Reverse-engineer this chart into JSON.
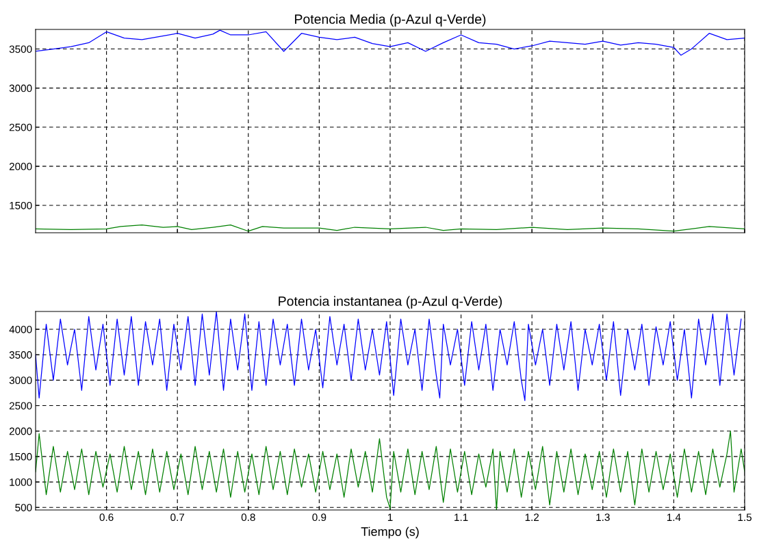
{
  "chart_data": [
    {
      "type": "line",
      "title": "Potencia Media (p-Azul q-Verde)",
      "xlim": [
        0.5,
        1.5
      ],
      "xticks": [
        0.6,
        0.7,
        0.8,
        0.9,
        1,
        1.1,
        1.2,
        1.3,
        1.4,
        1.5
      ],
      "ylim": [
        1150,
        3750
      ],
      "yticks": [
        1500,
        2000,
        2500,
        3000,
        3500
      ],
      "grid": true,
      "tick_labels": "y",
      "series": [
        {
          "color": "#0000ff",
          "x": [
            0.5,
            0.525,
            0.55,
            0.575,
            0.6,
            0.625,
            0.65,
            0.675,
            0.7,
            0.725,
            0.75,
            0.76,
            0.775,
            0.8,
            0.825,
            0.85,
            0.875,
            0.9,
            0.925,
            0.95,
            0.975,
            1.0,
            1.025,
            1.05,
            1.075,
            1.1,
            1.125,
            1.15,
            1.175,
            1.2,
            1.225,
            1.25,
            1.275,
            1.3,
            1.325,
            1.35,
            1.375,
            1.4,
            1.41,
            1.425,
            1.45,
            1.475,
            1.5
          ],
          "values": [
            3470,
            3500,
            3530,
            3580,
            3720,
            3640,
            3620,
            3660,
            3700,
            3640,
            3690,
            3740,
            3680,
            3680,
            3720,
            3470,
            3700,
            3650,
            3620,
            3650,
            3570,
            3530,
            3580,
            3470,
            3580,
            3680,
            3580,
            3560,
            3500,
            3540,
            3600,
            3580,
            3560,
            3600,
            3550,
            3580,
            3560,
            3520,
            3420,
            3500,
            3700,
            3620,
            3640
          ]
        },
        {
          "color": "#008000",
          "x": [
            0.5,
            0.55,
            0.6,
            0.62,
            0.65,
            0.68,
            0.7,
            0.72,
            0.75,
            0.775,
            0.8,
            0.82,
            0.85,
            0.9,
            0.925,
            0.95,
            1.0,
            1.05,
            1.075,
            1.1,
            1.15,
            1.2,
            1.25,
            1.3,
            1.35,
            1.4,
            1.45,
            1.5
          ],
          "values": [
            1200,
            1190,
            1200,
            1230,
            1250,
            1220,
            1230,
            1190,
            1220,
            1250,
            1170,
            1230,
            1210,
            1210,
            1180,
            1220,
            1200,
            1220,
            1180,
            1200,
            1190,
            1220,
            1190,
            1210,
            1200,
            1170,
            1230,
            1200
          ]
        }
      ]
    },
    {
      "type": "line",
      "title": "Potencia instantanea (p-Azul q-Verde)",
      "xlabel": "Tiempo (s)",
      "xlim": [
        0.5,
        1.5
      ],
      "xticks": [
        0.6,
        0.7,
        0.8,
        0.9,
        1,
        1.1,
        1.2,
        1.3,
        1.4,
        1.5
      ],
      "ylim": [
        450,
        4350
      ],
      "yticks": [
        500,
        1000,
        1500,
        2000,
        2500,
        3000,
        3500,
        4000
      ],
      "grid": true,
      "series": [
        {
          "color": "#0000ff",
          "x": [
            0.5,
            0.505,
            0.515,
            0.525,
            0.535,
            0.545,
            0.555,
            0.565,
            0.575,
            0.585,
            0.595,
            0.605,
            0.615,
            0.625,
            0.635,
            0.645,
            0.655,
            0.665,
            0.675,
            0.685,
            0.695,
            0.705,
            0.715,
            0.725,
            0.735,
            0.745,
            0.755,
            0.765,
            0.775,
            0.785,
            0.795,
            0.805,
            0.815,
            0.825,
            0.835,
            0.845,
            0.855,
            0.865,
            0.875,
            0.885,
            0.895,
            0.905,
            0.915,
            0.925,
            0.935,
            0.945,
            0.955,
            0.965,
            0.975,
            0.985,
            0.995,
            1.005,
            1.015,
            1.025,
            1.035,
            1.045,
            1.055,
            1.065,
            1.07,
            1.075,
            1.085,
            1.095,
            1.105,
            1.115,
            1.125,
            1.135,
            1.145,
            1.155,
            1.165,
            1.175,
            1.185,
            1.19,
            1.195,
            1.205,
            1.215,
            1.225,
            1.235,
            1.245,
            1.255,
            1.265,
            1.275,
            1.285,
            1.295,
            1.305,
            1.315,
            1.325,
            1.335,
            1.345,
            1.355,
            1.365,
            1.375,
            1.385,
            1.395,
            1.405,
            1.415,
            1.425,
            1.435,
            1.445,
            1.455,
            1.465,
            1.475,
            1.485,
            1.495
          ],
          "values": [
            3500,
            2650,
            4100,
            3000,
            4200,
            3300,
            4000,
            2800,
            4250,
            3200,
            4100,
            2900,
            4200,
            3100,
            4250,
            2900,
            4150,
            3300,
            4200,
            2800,
            4100,
            3200,
            4250,
            2900,
            4300,
            3100,
            4350,
            2800,
            4200,
            3200,
            4300,
            2800,
            4150,
            2900,
            4200,
            3300,
            4100,
            2900,
            4200,
            3200,
            4000,
            2850,
            4250,
            3300,
            4100,
            3000,
            4200,
            3200,
            4000,
            3100,
            4150,
            2700,
            4200,
            3300,
            4000,
            2800,
            4200,
            3100,
            2650,
            4100,
            3300,
            4000,
            2900,
            4150,
            3200,
            4100,
            2800,
            4000,
            3300,
            4150,
            3000,
            2600,
            4100,
            3300,
            4000,
            2900,
            4100,
            3200,
            4150,
            2800,
            4000,
            3300,
            4100,
            3000,
            4150,
            2700,
            4000,
            3200,
            4100,
            2900,
            4050,
            3300,
            4150,
            3000,
            4000,
            2650,
            4200,
            3300,
            4300,
            2900,
            4300,
            3100,
            4200
          ]
        },
        {
          "color": "#008000",
          "x": [
            0.5,
            0.505,
            0.515,
            0.525,
            0.535,
            0.545,
            0.555,
            0.565,
            0.575,
            0.585,
            0.595,
            0.605,
            0.615,
            0.625,
            0.635,
            0.645,
            0.655,
            0.665,
            0.675,
            0.685,
            0.695,
            0.705,
            0.715,
            0.725,
            0.735,
            0.745,
            0.755,
            0.765,
            0.775,
            0.785,
            0.795,
            0.805,
            0.815,
            0.825,
            0.835,
            0.845,
            0.855,
            0.865,
            0.875,
            0.885,
            0.895,
            0.905,
            0.915,
            0.925,
            0.935,
            0.945,
            0.955,
            0.965,
            0.975,
            0.985,
            0.995,
            1.0,
            1.005,
            1.015,
            1.025,
            1.035,
            1.045,
            1.055,
            1.065,
            1.075,
            1.085,
            1.095,
            1.105,
            1.115,
            1.125,
            1.135,
            1.145,
            1.15,
            1.155,
            1.165,
            1.175,
            1.185,
            1.195,
            1.205,
            1.215,
            1.225,
            1.235,
            1.245,
            1.255,
            1.265,
            1.275,
            1.285,
            1.295,
            1.305,
            1.315,
            1.325,
            1.335,
            1.345,
            1.355,
            1.365,
            1.375,
            1.385,
            1.395,
            1.405,
            1.415,
            1.425,
            1.435,
            1.445,
            1.455,
            1.465,
            1.475,
            1.48,
            1.485,
            1.495,
            1.5
          ],
          "values": [
            1200,
            1950,
            750,
            1700,
            800,
            1600,
            850,
            1650,
            750,
            1600,
            900,
            1550,
            800,
            1700,
            850,
            1600,
            750,
            1650,
            800,
            1600,
            850,
            1550,
            750,
            1700,
            850,
            1600,
            800,
            1650,
            700,
            1600,
            800,
            1550,
            750,
            1700,
            850,
            1600,
            750,
            1650,
            900,
            1550,
            800,
            1600,
            850,
            1550,
            700,
            1650,
            900,
            1600,
            800,
            1850,
            700,
            480,
            1600,
            800,
            1650,
            750,
            1600,
            850,
            1700,
            600,
            1650,
            800,
            1600,
            750,
            1550,
            900,
            1650,
            450,
            1600,
            800,
            1650,
            700,
            1600,
            850,
            1700,
            550,
            1600,
            800,
            1650,
            750,
            1550,
            850,
            1600,
            700,
            1650,
            800,
            1600,
            550,
            1650,
            800,
            1600,
            850,
            1550,
            700,
            1650,
            800,
            1600,
            750,
            1650,
            900,
            1550,
            2000,
            800,
            1650,
            1200
          ]
        }
      ]
    }
  ]
}
